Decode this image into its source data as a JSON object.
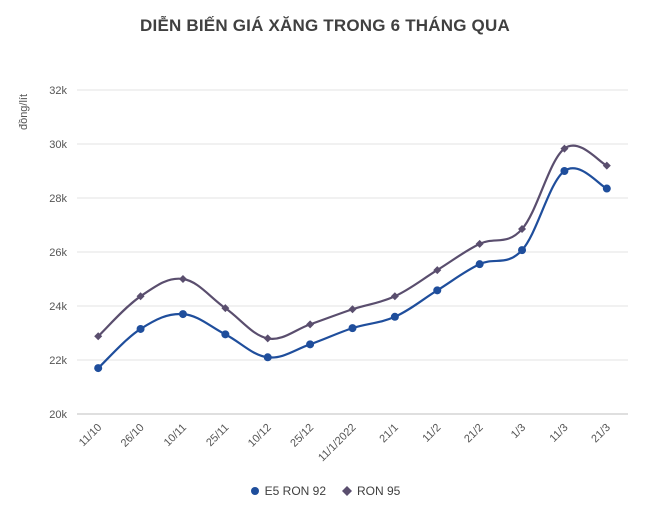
{
  "chart_data": {
    "type": "line",
    "title": "DIỄN BIẾN GIÁ XĂNG TRONG 6 THÁNG QUA",
    "xlabel": "",
    "ylabel": "đồng/lít",
    "ylim": [
      20000,
      32000
    ],
    "yticks": [
      20000,
      22000,
      24000,
      26000,
      28000,
      30000,
      32000
    ],
    "ytick_labels": [
      "20k",
      "22k",
      "24k",
      "26k",
      "28k",
      "30k",
      "32k"
    ],
    "categories": [
      "11/10",
      "26/10",
      "10/11",
      "25/11",
      "10/12",
      "25/12",
      "11/1/2022",
      "21/1",
      "11/2",
      "21/2",
      "1/3",
      "11/3",
      "21/3"
    ],
    "grid": "horizontal",
    "legend_position": "bottom",
    "series": [
      {
        "name": "E5 RON 92",
        "color": "#1f4e9c",
        "marker": "circle",
        "values": [
          21700,
          23150,
          23700,
          22950,
          22100,
          22580,
          23180,
          23600,
          24580,
          25550,
          26070,
          29000,
          28350
        ]
      },
      {
        "name": "RON 95",
        "color": "#5a4e6e",
        "marker": "diamond",
        "values": [
          22880,
          24360,
          25000,
          23920,
          22800,
          23320,
          23880,
          24360,
          25330,
          26300,
          26850,
          29830,
          29200
        ]
      }
    ]
  }
}
